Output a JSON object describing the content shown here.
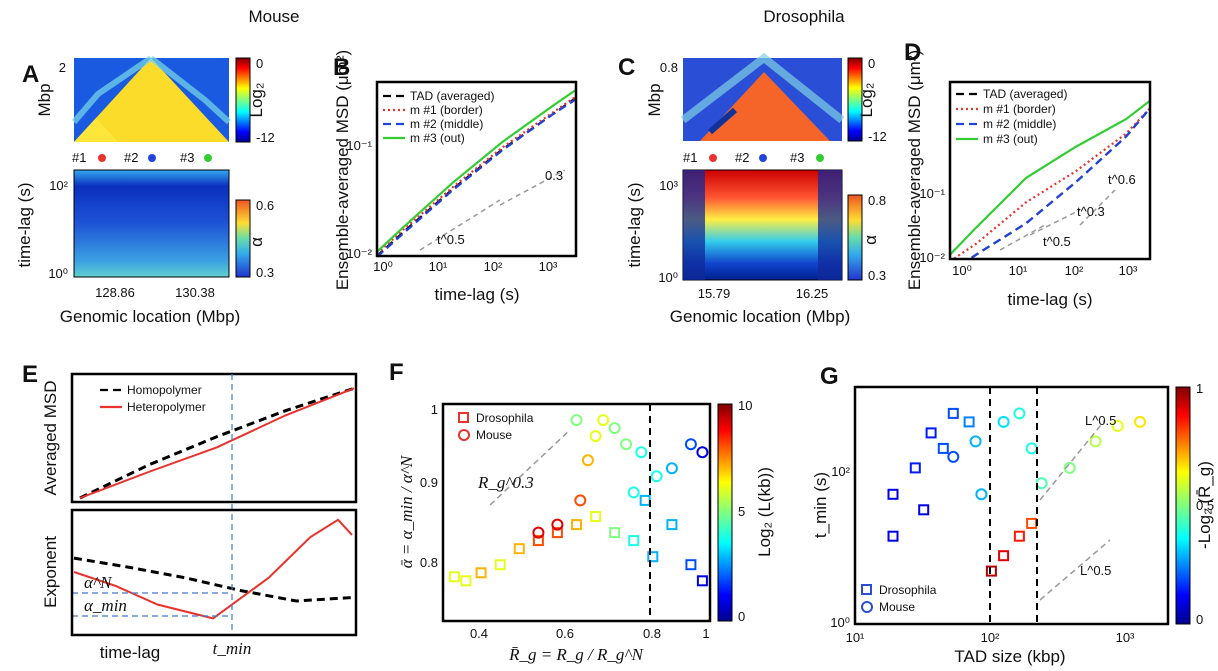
{
  "figure": {
    "group_titles": [
      "Mouse",
      "Drosophila"
    ],
    "panel_labels": [
      "A",
      "B",
      "C",
      "D",
      "E",
      "F",
      "G"
    ]
  },
  "colors": {
    "red": "#e8322b",
    "blue": "#2244dd",
    "green": "#33cc33",
    "black": "#000000",
    "gray": "#999999"
  },
  "chart_data": [
    {
      "panel": "A",
      "type": "heatmap",
      "top": {
        "ylabel": "Mbp",
        "yticks": [
          "2"
        ],
        "colorbar": {
          "label": "Log₂",
          "ticks": [
            "0",
            "-12"
          ]
        },
        "markers": [
          "#1",
          "#2",
          "#3"
        ],
        "marker_colors": [
          "red",
          "blue",
          "green"
        ]
      },
      "bottom": {
        "ylabel": "time-lag (s)",
        "yticks": [
          "10²",
          "10⁰"
        ],
        "xlabel": "Genomic location (Mbp)",
        "xticks": [
          "128.86",
          "130.38"
        ],
        "colorbar": {
          "label": "α",
          "ticks": [
            "0.6",
            "0.3"
          ]
        }
      }
    },
    {
      "panel": "B",
      "type": "line",
      "xlabel": "time-lag (s)",
      "ylabel": "Ensemble-averaged MSD (μm²)",
      "xscale": "log",
      "yscale": "log",
      "xlim": [
        0.3,
        3000
      ],
      "ylim": [
        0.01,
        0.5
      ],
      "xticks": [
        "10⁰",
        "10¹",
        "10²",
        "10³"
      ],
      "yticks": [
        "10⁻¹",
        "10⁻²"
      ],
      "legend_position": "top-left",
      "series": [
        {
          "name": "TAD (averaged)",
          "color": "black",
          "style": "dashed",
          "x": [
            0.3,
            1,
            10,
            100,
            1000,
            3000
          ],
          "y": [
            0.01,
            0.017,
            0.045,
            0.11,
            0.24,
            0.35
          ]
        },
        {
          "name": "m #1 (border)",
          "color": "red",
          "style": "dotted",
          "x": [
            0.3,
            1,
            10,
            100,
            1000,
            3000
          ],
          "y": [
            0.0105,
            0.018,
            0.047,
            0.115,
            0.25,
            0.36
          ]
        },
        {
          "name": "m #2 (middle)",
          "color": "blue",
          "style": "dashed",
          "x": [
            0.3,
            1,
            10,
            100,
            1000,
            3000
          ],
          "y": [
            0.0098,
            0.0165,
            0.044,
            0.108,
            0.24,
            0.34
          ]
        },
        {
          "name": "m #3 (out)",
          "color": "green",
          "style": "solid",
          "x": [
            0.3,
            1,
            10,
            100,
            1000,
            3000
          ],
          "y": [
            0.011,
            0.019,
            0.052,
            0.13,
            0.29,
            0.42
          ]
        }
      ],
      "guides": [
        {
          "label": "t^0.5",
          "slope": 0.5
        },
        {
          "label": "0.3",
          "slope": 0.3
        }
      ]
    },
    {
      "panel": "C",
      "type": "heatmap",
      "top": {
        "ylabel": "Mbp",
        "yticks": [
          "0.8"
        ],
        "colorbar": {
          "label": "Log₂",
          "ticks": [
            "0",
            "-12"
          ]
        },
        "markers": [
          "#1",
          "#2",
          "#3"
        ],
        "marker_colors": [
          "red",
          "blue",
          "green"
        ]
      },
      "bottom": {
        "ylabel": "time-lag (s)",
        "yticks": [
          "10³",
          "10⁰"
        ],
        "xlabel": "Genomic location (Mbp)",
        "xticks": [
          "15.79",
          "16.25"
        ],
        "colorbar": {
          "label": "α",
          "ticks": [
            "0.8",
            "0.3"
          ]
        }
      }
    },
    {
      "panel": "D",
      "type": "line",
      "xlabel": "time-lag (s)",
      "ylabel": "Ensemble-averaged MSD (μm²)",
      "xscale": "log",
      "yscale": "log",
      "xlim": [
        0.3,
        3000
      ],
      "ylim": [
        0.01,
        0.5
      ],
      "xticks": [
        "10⁰",
        "10¹",
        "10²",
        "10³"
      ],
      "yticks": [
        "10⁻¹",
        "10⁻²"
      ],
      "legend_position": "top-left",
      "series": [
        {
          "name": "TAD (averaged)",
          "color": "black",
          "style": "dashed",
          "x": [
            0.3,
            1,
            10,
            100,
            1000,
            3000
          ],
          "y": [
            0.0075,
            0.011,
            0.022,
            0.055,
            0.15,
            0.28
          ]
        },
        {
          "name": "m #1 (border)",
          "color": "red",
          "style": "dotted",
          "x": [
            0.3,
            1,
            10,
            100,
            1000,
            3000
          ],
          "y": [
            0.0095,
            0.014,
            0.035,
            0.07,
            0.16,
            0.28
          ]
        },
        {
          "name": "m #2 (middle)",
          "color": "blue",
          "style": "dashed",
          "x": [
            0.3,
            1,
            10,
            100,
            1000,
            3000
          ],
          "y": [
            0.0075,
            0.011,
            0.022,
            0.055,
            0.15,
            0.28
          ]
        },
        {
          "name": "m #3 (out)",
          "color": "green",
          "style": "solid",
          "x": [
            0.3,
            1,
            10,
            100,
            1000,
            3000
          ],
          "y": [
            0.011,
            0.02,
            0.06,
            0.12,
            0.22,
            0.33
          ]
        }
      ],
      "guides": [
        {
          "label": "t^0.5",
          "slope": 0.5
        },
        {
          "label": "t^0.3",
          "slope": 0.3
        },
        {
          "label": "t^0.6",
          "slope": 0.6
        }
      ]
    },
    {
      "panel": "E",
      "type": "line",
      "top": {
        "ylabel": "Averaged MSD",
        "legend_position": "top-left",
        "series": [
          {
            "name": "Homopolymer",
            "color": "black",
            "style": "dashed",
            "x": [
              0,
              0.25,
              0.5,
              0.75,
              1
            ],
            "y": [
              0.0,
              0.28,
              0.52,
              0.74,
              0.93
            ]
          },
          {
            "name": "Heteropolymer",
            "color": "red",
            "style": "solid",
            "x": [
              0,
              0.25,
              0.5,
              0.75,
              1
            ],
            "y": [
              0.0,
              0.22,
              0.43,
              0.7,
              0.93
            ]
          }
        ]
      },
      "bottom": {
        "ylabel": "Exponent",
        "xlabel": "time-lag",
        "annotations": [
          "α^N",
          "α_min",
          "t_min"
        ],
        "series": [
          {
            "name": "Homopolymer",
            "color": "black",
            "style": "dashed",
            "x": [
              0,
              0.2,
              0.4,
              0.6,
              0.8,
              1
            ],
            "y": [
              0.62,
              0.54,
              0.45,
              0.34,
              0.25,
              0.28
            ]
          },
          {
            "name": "Heteropolymer",
            "color": "red",
            "style": "solid",
            "x": [
              0,
              0.15,
              0.3,
              0.5,
              0.7,
              0.85,
              0.95,
              1
            ],
            "y": [
              0.5,
              0.38,
              0.22,
              0.1,
              0.45,
              0.8,
              0.95,
              0.82
            ]
          }
        ]
      }
    },
    {
      "panel": "F",
      "type": "scatter",
      "xlabel": "R̄_g = R_g / R_g^N",
      "ylabel": "ᾱ = α_min / α^N",
      "xlim": [
        0.3,
        1.0
      ],
      "ylim": [
        0.75,
        1.02
      ],
      "xticks": [
        "0.4",
        "0.6",
        "0.8",
        "1"
      ],
      "yticks": [
        "1",
        "0.9",
        "0.8"
      ],
      "colorbar": {
        "label": "Log₂ (L(kb))",
        "ticks": [
          "10",
          "5",
          "0"
        ]
      },
      "legend_position": "top-left",
      "legend": [
        {
          "name": "Drosophila",
          "marker": "square"
        },
        {
          "name": "Mouse",
          "marker": "circle"
        }
      ],
      "guides": [
        {
          "label": "R_g^0.3"
        }
      ],
      "vline": 0.8,
      "series": [
        {
          "name": "Drosophila",
          "marker": "square",
          "points": [
            {
              "x": 0.33,
              "y": 0.805,
              "c": 6
            },
            {
              "x": 0.36,
              "y": 0.8,
              "c": 6
            },
            {
              "x": 0.4,
              "y": 0.81,
              "c": 7
            },
            {
              "x": 0.45,
              "y": 0.82,
              "c": 6
            },
            {
              "x": 0.5,
              "y": 0.84,
              "c": 7
            },
            {
              "x": 0.55,
              "y": 0.85,
              "c": 8
            },
            {
              "x": 0.6,
              "y": 0.86,
              "c": 8
            },
            {
              "x": 0.65,
              "y": 0.87,
              "c": 7
            },
            {
              "x": 0.7,
              "y": 0.88,
              "c": 6
            },
            {
              "x": 0.75,
              "y": 0.86,
              "c": 5
            },
            {
              "x": 0.8,
              "y": 0.85,
              "c": 4
            },
            {
              "x": 0.85,
              "y": 0.83,
              "c": 3
            },
            {
              "x": 0.9,
              "y": 0.87,
              "c": 3
            },
            {
              "x": 0.95,
              "y": 0.82,
              "c": 2
            },
            {
              "x": 0.98,
              "y": 0.8,
              "c": 1
            },
            {
              "x": 0.83,
              "y": 0.9,
              "c": 3
            }
          ]
        },
        {
          "name": "Mouse",
          "marker": "circle",
          "points": [
            {
              "x": 0.55,
              "y": 0.86,
              "c": 9
            },
            {
              "x": 0.6,
              "y": 0.87,
              "c": 9
            },
            {
              "x": 0.66,
              "y": 0.9,
              "c": 8
            },
            {
              "x": 0.68,
              "y": 0.95,
              "c": 7
            },
            {
              "x": 0.7,
              "y": 0.98,
              "c": 6
            },
            {
              "x": 0.72,
              "y": 1.0,
              "c": 6
            },
            {
              "x": 0.75,
              "y": 0.99,
              "c": 5
            },
            {
              "x": 0.78,
              "y": 0.97,
              "c": 5
            },
            {
              "x": 0.82,
              "y": 0.96,
              "c": 4
            },
            {
              "x": 0.86,
              "y": 0.93,
              "c": 4
            },
            {
              "x": 0.9,
              "y": 0.94,
              "c": 3
            },
            {
              "x": 0.95,
              "y": 0.97,
              "c": 2
            },
            {
              "x": 0.98,
              "y": 0.96,
              "c": 1
            },
            {
              "x": 0.65,
              "y": 1.0,
              "c": 5
            },
            {
              "x": 0.8,
              "y": 0.91,
              "c": 4
            }
          ]
        }
      ]
    },
    {
      "panel": "G",
      "type": "scatter",
      "xlabel": "TAD size (kbp)",
      "ylabel": "t_min (s)",
      "xscale": "log",
      "yscale": "log",
      "xlim": [
        10,
        3000
      ],
      "ylim": [
        1,
        500
      ],
      "xticks": [
        "10¹",
        "10²",
        "10³"
      ],
      "yticks": [
        "10²",
        "10⁰"
      ],
      "colorbar": {
        "label": "-Log₂ (R̄_g)",
        "ticks": [
          "1",
          "0.5",
          "0"
        ]
      },
      "legend_position": "bottom-left",
      "legend": [
        {
          "name": "Drosophila",
          "marker": "square"
        },
        {
          "name": "Mouse",
          "marker": "circle"
        }
      ],
      "guides": [
        {
          "label": "L^0.5"
        },
        {
          "label": "L^0.5"
        }
      ],
      "vlines": [
        100,
        200
      ],
      "series": [
        {
          "name": "Drosophila",
          "marker": "square",
          "points": [
            {
              "x": 20,
              "y": 10,
              "c": 0.1
            },
            {
              "x": 20,
              "y": 30,
              "c": 0.1
            },
            {
              "x": 30,
              "y": 60,
              "c": 0.15
            },
            {
              "x": 40,
              "y": 150,
              "c": 0.15
            },
            {
              "x": 60,
              "y": 250,
              "c": 0.2
            },
            {
              "x": 80,
              "y": 200,
              "c": 0.25
            },
            {
              "x": 120,
              "y": 4,
              "c": 0.95
            },
            {
              "x": 150,
              "y": 6,
              "c": 0.9
            },
            {
              "x": 200,
              "y": 10,
              "c": 0.85
            },
            {
              "x": 250,
              "y": 14,
              "c": 0.8
            },
            {
              "x": 35,
              "y": 20,
              "c": 0.1
            },
            {
              "x": 50,
              "y": 100,
              "c": 0.2
            }
          ]
        },
        {
          "name": "Mouse",
          "marker": "circle",
          "points": [
            {
              "x": 60,
              "y": 80,
              "c": 0.2
            },
            {
              "x": 90,
              "y": 120,
              "c": 0.3
            },
            {
              "x": 150,
              "y": 200,
              "c": 0.35
            },
            {
              "x": 200,
              "y": 250,
              "c": 0.4
            },
            {
              "x": 300,
              "y": 40,
              "c": 0.45
            },
            {
              "x": 500,
              "y": 60,
              "c": 0.5
            },
            {
              "x": 800,
              "y": 120,
              "c": 0.55
            },
            {
              "x": 1200,
              "y": 180,
              "c": 0.6
            },
            {
              "x": 1800,
              "y": 200,
              "c": 0.65
            },
            {
              "x": 100,
              "y": 30,
              "c": 0.3
            },
            {
              "x": 250,
              "y": 100,
              "c": 0.4
            }
          ]
        }
      ]
    }
  ]
}
